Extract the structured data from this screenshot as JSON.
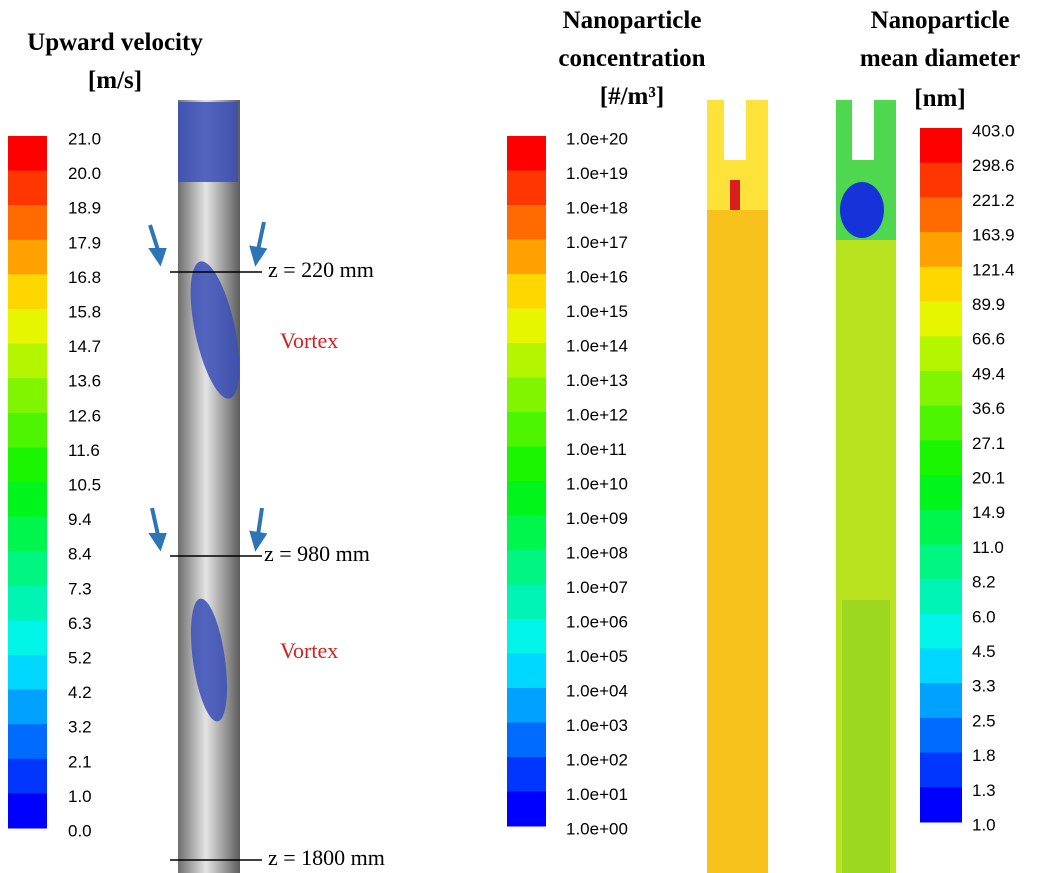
{
  "panels": [
    {
      "title_lines": [
        "Upward velocity",
        "[m/s]"
      ],
      "colorbar_labels": [
        "21.0",
        "20.0",
        "18.9",
        "17.9",
        "16.8",
        "15.8",
        "14.7",
        "13.6",
        "12.6",
        "11.6",
        "10.5",
        "9.4",
        "8.4",
        "7.3",
        "6.3",
        "5.2",
        "4.2",
        "3.2",
        "2.1",
        "1.0",
        "0.0"
      ],
      "annotations": [
        "z = 220 mm",
        "Vortex",
        "z = 980 mm",
        "Vortex",
        "z = 1800 mm"
      ]
    },
    {
      "title_lines": [
        "Nanoparticle",
        "concentration",
        "[#/m³]"
      ],
      "colorbar_labels": [
        "1.0e+20",
        "1.0e+19",
        "1.0e+18",
        "1.0e+17",
        "1.0e+16",
        "1.0e+15",
        "1.0e+14",
        "1.0e+13",
        "1.0e+12",
        "1.0e+11",
        "1.0e+10",
        "1.0e+09",
        "1.0e+08",
        "1.0e+07",
        "1.0e+06",
        "1.0e+05",
        "1.0e+04",
        "1.0e+03",
        "1.0e+02",
        "1.0e+01",
        "1.0e+00"
      ]
    },
    {
      "title_lines": [
        "Nanoparticle",
        "mean diameter",
        "[nm]"
      ],
      "colorbar_labels": [
        "403.0",
        "298.6",
        "221.2",
        "163.9",
        "121.4",
        "89.9",
        "66.6",
        "49.4",
        "36.6",
        "27.1",
        "20.1",
        "14.9",
        "11.0",
        "8.2",
        "6.0",
        "4.5",
        "3.3",
        "2.5",
        "1.8",
        "1.3",
        "1.0"
      ]
    }
  ]
}
